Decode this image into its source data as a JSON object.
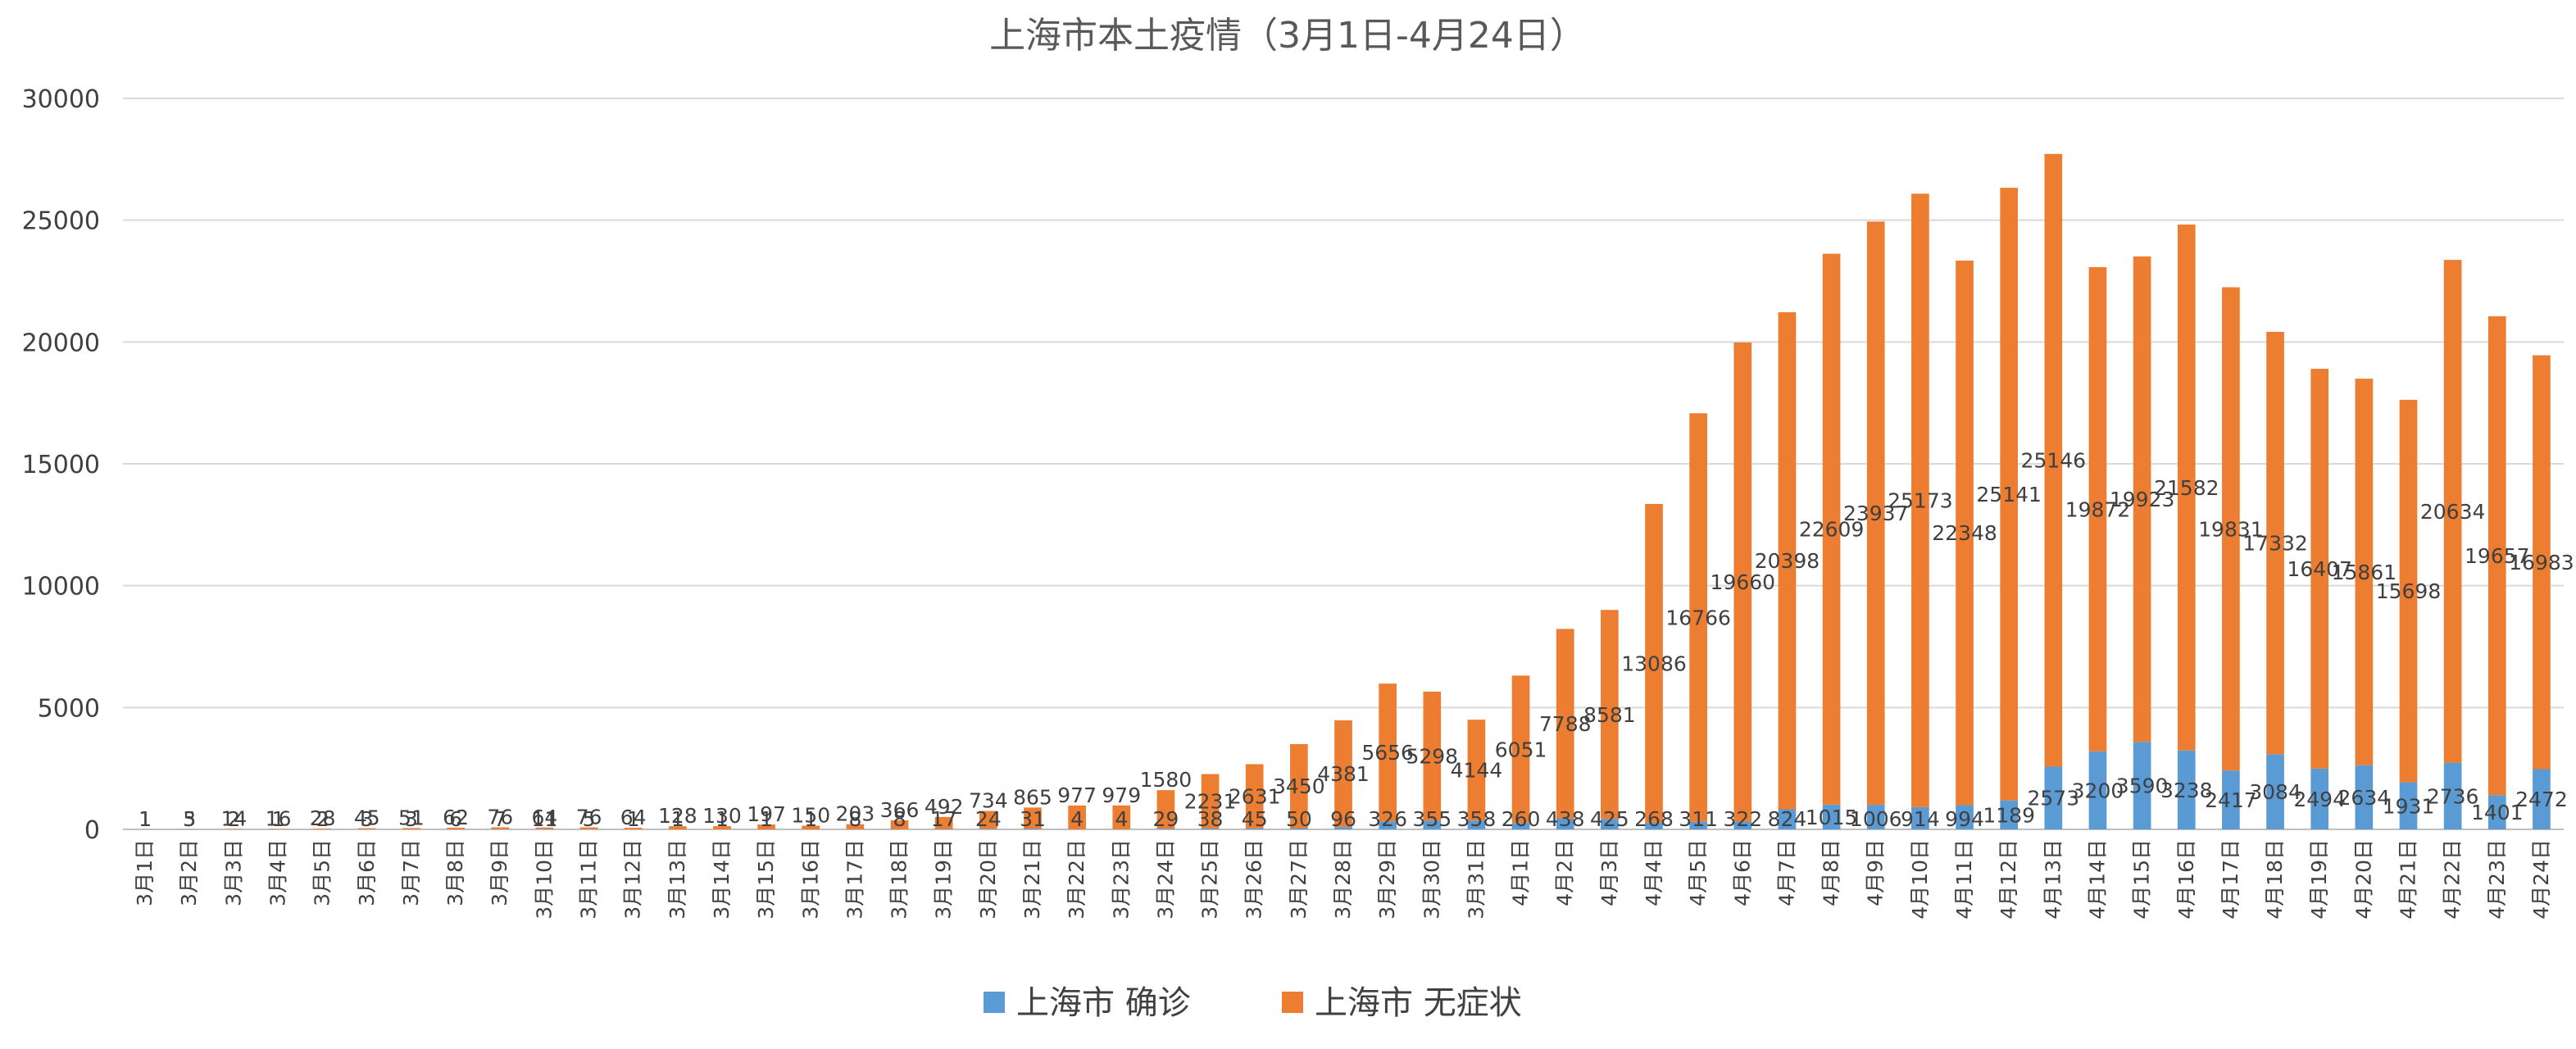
{
  "chart_data": {
    "type": "bar",
    "stacked": true,
    "title": "上海市本土疫情（3月1日-4月24日）",
    "xlabel": "",
    "ylabel": "",
    "ylim": [
      0,
      30000
    ],
    "yticks": [
      0,
      5000,
      10000,
      15000,
      20000,
      25000,
      30000
    ],
    "grid": true,
    "legend_position": "bottom",
    "categories": [
      "3月1日",
      "3月2日",
      "3月3日",
      "3月4日",
      "3月5日",
      "3月6日",
      "3月7日",
      "3月8日",
      "3月9日",
      "3月10日",
      "3月11日",
      "3月12日",
      "3月13日",
      "3月14日",
      "3月15日",
      "3月16日",
      "3月17日",
      "3月18日",
      "3月19日",
      "3月20日",
      "3月21日",
      "3月22日",
      "3月23日",
      "3月24日",
      "3月25日",
      "3月26日",
      "3月27日",
      "3月28日",
      "3月29日",
      "3月30日",
      "3月31日",
      "4月1日",
      "4月2日",
      "4月3日",
      "4月4日",
      "4月5日",
      "4月6日",
      "4月7日",
      "4月8日",
      "4月9日",
      "4月10日",
      "4月11日",
      "4月12日",
      "4月13日",
      "4月14日",
      "4月15日",
      "4月16日",
      "4月17日",
      "4月18日",
      "4月19日",
      "4月20日",
      "4月21日",
      "4月22日",
      "4月23日",
      "4月24日"
    ],
    "series": [
      {
        "name": "上海市 确诊",
        "color": "#5b9bd5",
        "values": [
          1,
          3,
          2,
          1,
          2,
          3,
          3,
          6,
          7,
          11,
          5,
          1,
          1,
          1,
          1,
          1,
          8,
          8,
          17,
          24,
          31,
          4,
          4,
          29,
          38,
          45,
          50,
          96,
          326,
          355,
          358,
          260,
          438,
          425,
          268,
          311,
          322,
          824,
          1015,
          1006,
          914,
          994,
          1189,
          2573,
          3200,
          3590,
          3238,
          2417,
          3084,
          2494,
          2634,
          1931,
          2736,
          1401,
          2472
        ]
      },
      {
        "name": "上海市 无症状",
        "color": "#ed7d31",
        "values": [
          1,
          5,
          14,
          16,
          28,
          45,
          51,
          62,
          76,
          64,
          76,
          64,
          128,
          130,
          197,
          150,
          203,
          366,
          492,
          734,
          865,
          977,
          979,
          1580,
          2231,
          2631,
          3450,
          4381,
          5656,
          5298,
          4144,
          6051,
          7788,
          8581,
          13086,
          16766,
          19660,
          20398,
          22609,
          23937,
          25173,
          22348,
          25141,
          25146,
          19872,
          19923,
          21582,
          19831,
          17332,
          16407,
          15861,
          15698,
          20634,
          19657,
          16983
        ]
      }
    ]
  }
}
